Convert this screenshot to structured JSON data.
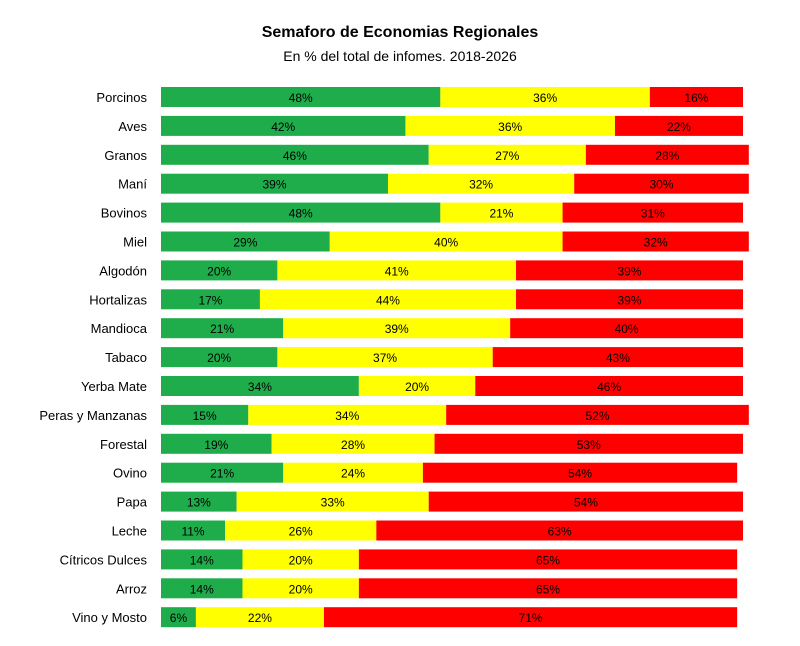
{
  "chart_data": {
    "type": "bar",
    "orientation": "horizontal",
    "stacked": true,
    "title": "Semaforo de Economias Regionales",
    "subtitle": "En % del total de infomes. 2018-2026",
    "categories": [
      "Porcinos",
      "Aves",
      "Granos",
      "Maní",
      "Bovinos",
      "Miel",
      "Algodón",
      "Hortalizas",
      "Mandioca",
      "Tabaco",
      "Yerba Mate",
      "Peras y Manzanas",
      "Forestal",
      "Ovino",
      "Papa",
      "Leche",
      "Cítricos Dulces",
      "Arroz",
      "Vino y Mosto"
    ],
    "series": [
      {
        "color": "#1fac4b",
        "values": [
          48,
          42,
          46,
          39,
          48,
          29,
          20,
          17,
          21,
          20,
          34,
          15,
          19,
          21,
          13,
          11,
          14,
          14,
          6
        ]
      },
      {
        "color": "#ffff00",
        "values": [
          36,
          36,
          27,
          32,
          21,
          40,
          41,
          44,
          39,
          37,
          20,
          34,
          28,
          24,
          33,
          26,
          20,
          20,
          22
        ]
      },
      {
        "color": "#ff0000",
        "values": [
          16,
          22,
          28,
          30,
          31,
          32,
          39,
          39,
          40,
          43,
          46,
          52,
          53,
          54,
          54,
          63,
          65,
          65,
          71
        ]
      }
    ],
    "value_suffix": "%",
    "xlim": [
      0,
      100
    ],
    "grid": false,
    "legend": "none"
  }
}
